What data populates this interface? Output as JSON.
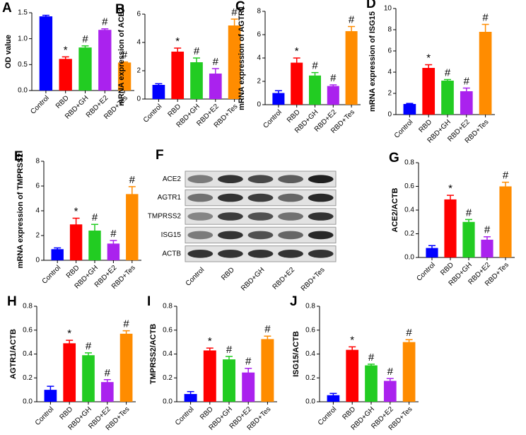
{
  "chart_data": [
    {
      "type": "bar",
      "panel": "A",
      "y_label": "OD value",
      "categories": [
        "Control",
        "RBD",
        "RBD+GH",
        "RBD+E2",
        "RBD+Tes"
      ],
      "colors": [
        "#0000ff",
        "#ff0000",
        "#22cc22",
        "#aa22ee",
        "#ff8c00"
      ],
      "values": [
        1.43,
        0.61,
        0.83,
        1.17,
        0.54
      ],
      "errors": [
        0.02,
        0.04,
        0.03,
        0.02,
        0.01
      ],
      "annotations": [
        null,
        "*",
        "#",
        "#",
        "#"
      ],
      "ylim": [
        0,
        1.5
      ],
      "yticks": [
        {
          "value": 0,
          "label": "0.0"
        },
        0.5,
        {
          "value": 1,
          "label": "1.0"
        },
        1.5
      ]
    },
    {
      "type": "bar",
      "panel": "B",
      "y_label": "mRNA expression of ACE2",
      "categories": [
        "Control",
        "RBD",
        "RBD+GH",
        "RBD+E2",
        "RBD+Tes"
      ],
      "colors": [
        "#0000ff",
        "#ff0000",
        "#22cc22",
        "#aa22ee",
        "#ff8c00"
      ],
      "values": [
        1.0,
        3.35,
        2.6,
        1.8,
        5.2
      ],
      "errors": [
        0.08,
        0.25,
        0.3,
        0.35,
        0.45
      ],
      "annotations": [
        null,
        "*",
        "#",
        "#",
        "#"
      ],
      "ylim": [
        0,
        6
      ],
      "yticks": [
        0,
        2,
        4,
        6
      ]
    },
    {
      "type": "bar",
      "panel": "C",
      "y_label": "mRNA expression of AGTR1",
      "categories": [
        "Control",
        "RBD",
        "RBD+GH",
        "RBD+E2",
        "RBD+Tes"
      ],
      "colors": [
        "#0000ff",
        "#ff0000",
        "#22cc22",
        "#aa22ee",
        "#ff8c00"
      ],
      "values": [
        1.0,
        3.6,
        2.5,
        1.6,
        6.3
      ],
      "errors": [
        0.2,
        0.4,
        0.25,
        0.1,
        0.4
      ],
      "annotations": [
        null,
        "*",
        "#",
        "#",
        "#"
      ],
      "ylim": [
        0,
        8
      ],
      "yticks": [
        0,
        2,
        4,
        6,
        8
      ]
    },
    {
      "type": "bar",
      "panel": "D",
      "y_label": "mRNA expression of ISG15",
      "categories": [
        "Control",
        "RBD",
        "RBD+GH",
        "RBD+E2",
        "RBD+Tes"
      ],
      "colors": [
        "#0000ff",
        "#ff0000",
        "#22cc22",
        "#aa22ee",
        "#ff8c00"
      ],
      "values": [
        1.0,
        4.4,
        3.2,
        2.2,
        7.8
      ],
      "errors": [
        0.05,
        0.3,
        0.1,
        0.3,
        0.7
      ],
      "annotations": [
        null,
        "*",
        "#",
        "#",
        "#"
      ],
      "ylim": [
        0,
        10
      ],
      "yticks": [
        0,
        2,
        4,
        6,
        8,
        10
      ]
    },
    {
      "type": "bar",
      "panel": "E",
      "y_label": "mRNA expression of TMPRSS2",
      "categories": [
        "Control",
        "RBD",
        "RBD+GH",
        "RBD+E2",
        "RBD+Tes"
      ],
      "colors": [
        "#0000ff",
        "#ff0000",
        "#22cc22",
        "#aa22ee",
        "#ff8c00"
      ],
      "values": [
        0.9,
        2.9,
        2.4,
        1.35,
        5.35
      ],
      "errors": [
        0.1,
        0.5,
        0.5,
        0.25,
        0.6
      ],
      "annotations": [
        null,
        "*",
        "#",
        "#",
        "#"
      ],
      "ylim": [
        0,
        8
      ],
      "yticks": [
        0,
        2,
        4,
        6,
        8
      ]
    },
    {
      "type": "blot",
      "panel": "F",
      "rows": [
        "ACE2",
        "AGTR1",
        "TMPRSS2",
        "ISG15",
        "ACTB"
      ],
      "categories": [
        "Control",
        "RBD",
        "RBD+GH",
        "RBD+E2",
        "RBD+Tes"
      ]
    },
    {
      "type": "bar",
      "panel": "G",
      "y_label": "ACE2/ACTB",
      "categories": [
        "Control",
        "RBD",
        "RBD+GH",
        "RBD+E2",
        "RBD+Tes"
      ],
      "colors": [
        "#0000ff",
        "#ff0000",
        "#22cc22",
        "#aa22ee",
        "#ff8c00"
      ],
      "values": [
        0.08,
        0.49,
        0.3,
        0.15,
        0.6
      ],
      "errors": [
        0.02,
        0.035,
        0.02,
        0.025,
        0.035
      ],
      "annotations": [
        null,
        "*",
        "#",
        "#",
        "#"
      ],
      "ylim": [
        0,
        0.8
      ],
      "yticks": [
        {
          "value": 0,
          "label": "0.0"
        },
        0.2,
        0.4,
        0.6,
        0.8
      ]
    },
    {
      "type": "bar",
      "panel": "H",
      "y_label": "AGTR1/ACTB",
      "categories": [
        "Control",
        "RBD",
        "RBD+GH",
        "RBD+E2",
        "RBD+Tes"
      ],
      "colors": [
        "#0000ff",
        "#ff0000",
        "#22cc22",
        "#aa22ee",
        "#ff8c00"
      ],
      "values": [
        0.1,
        0.49,
        0.39,
        0.165,
        0.57
      ],
      "errors": [
        0.03,
        0.025,
        0.02,
        0.02,
        0.025
      ],
      "annotations": [
        null,
        "*",
        "#",
        "#",
        "#"
      ],
      "ylim": [
        0,
        0.8
      ],
      "yticks": [
        {
          "value": 0,
          "label": "0.0"
        },
        0.2,
        0.4,
        0.6,
        0.8
      ]
    },
    {
      "type": "bar",
      "panel": "I",
      "y_label": "TMPRSS2/ACTB",
      "categories": [
        "Control",
        "RBD",
        "RBD+GH",
        "RBD+E2",
        "RBD+Tes"
      ],
      "colors": [
        "#0000ff",
        "#ff0000",
        "#22cc22",
        "#aa22ee",
        "#ff8c00"
      ],
      "values": [
        0.065,
        0.43,
        0.355,
        0.245,
        0.525
      ],
      "errors": [
        0.02,
        0.02,
        0.025,
        0.035,
        0.025
      ],
      "annotations": [
        null,
        "*",
        "#",
        "#",
        "#"
      ],
      "ylim": [
        0,
        0.8
      ],
      "yticks": [
        {
          "value": 0,
          "label": "0.0"
        },
        0.2,
        0.4,
        0.6,
        0.8
      ]
    },
    {
      "type": "bar",
      "panel": "J",
      "y_label": "ISG15/ACTB",
      "categories": [
        "Control",
        "RBD",
        "RBD+GH",
        "RBD+E2",
        "RBD+Tes"
      ],
      "colors": [
        "#0000ff",
        "#ff0000",
        "#22cc22",
        "#aa22ee",
        "#ff8c00"
      ],
      "values": [
        0.055,
        0.435,
        0.305,
        0.175,
        0.5
      ],
      "errors": [
        0.015,
        0.025,
        0.01,
        0.02,
        0.02
      ],
      "annotations": [
        null,
        "*",
        "#",
        "#",
        "#"
      ],
      "ylim": [
        0,
        0.8
      ],
      "yticks": [
        {
          "value": 0,
          "label": "0.0"
        },
        0.2,
        0.4,
        0.6,
        0.8
      ]
    }
  ]
}
